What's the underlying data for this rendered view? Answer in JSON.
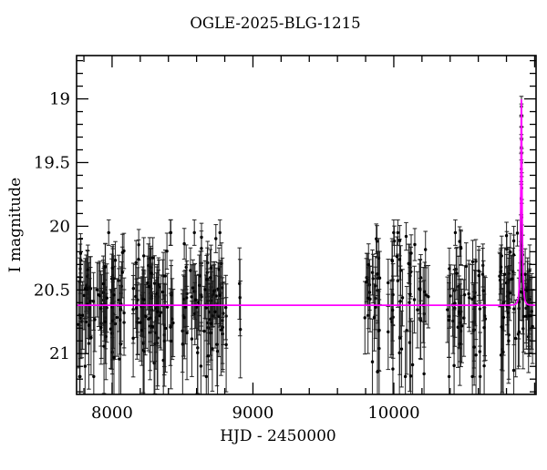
{
  "title": "OGLE-2025-BLG-1215",
  "axes": {
    "xlabel": "HJD - 2450000",
    "ylabel": "I magnitude",
    "x_range": [
      7748,
      11010
    ],
    "y_range_mag": [
      21.32,
      18.66
    ],
    "x_major_ticks": [
      8000,
      9000,
      10000,
      11000
    ],
    "x_labeled_ticks": [
      8000,
      9000,
      10000
    ],
    "x_tick_labels": [
      "8000",
      "9000",
      "10000"
    ],
    "x_minor_step": 200,
    "y_major_ticks": [
      19,
      19.5,
      20,
      20.5,
      21
    ],
    "y_tick_labels": [
      "19",
      "19.5",
      "20",
      "20.5",
      "21"
    ],
    "y_minor_step": 0.1
  },
  "chart_data": {
    "type": "scatter",
    "title": "OGLE-2025-BLG-1215",
    "xlabel": "HJD - 2450000",
    "ylabel": "I magnitude",
    "y_axis_inverted": true,
    "grid": false,
    "legend": "none",
    "marker_color": "#000000",
    "errorbar_color": "#1a1a1a",
    "model_color": "#ff00ff",
    "baseline_mag": 20.62,
    "model": {
      "name": "paczynski-microlensing-fit",
      "t0": 10906,
      "tE": 11,
      "u0": 0.23,
      "baseline_mag": 20.62,
      "peak_mag": 19.0
    },
    "seasons": [
      {
        "hjd_min": 7760,
        "hjd_max": 8085,
        "n": 85,
        "clumps": 6
      },
      {
        "hjd_min": 8150,
        "hjd_max": 8440,
        "n": 78,
        "clumps": 6
      },
      {
        "hjd_min": 8500,
        "hjd_max": 8810,
        "n": 80,
        "clumps": 6
      },
      {
        "hjd_min": 9795,
        "hjd_max": 9900,
        "n": 28,
        "clumps": 2
      },
      {
        "hjd_min": 9960,
        "hjd_max": 10245,
        "n": 52,
        "clumps": 5
      },
      {
        "hjd_min": 10380,
        "hjd_max": 10650,
        "n": 56,
        "clumps": 5
      },
      {
        "hjd_min": 10745,
        "hjd_max": 10985,
        "n": 62,
        "clumps": 5
      }
    ],
    "scatter_stats": {
      "mag_mean": 20.6,
      "mag_sigma": 0.26,
      "mag_min": 20.05,
      "mag_max": 21.18,
      "err_base": 0.1,
      "err_slope": 0.3
    },
    "seed": 7,
    "isolated_points": [
      [
        8905,
        20.45,
        0.28
      ],
      [
        8908,
        20.56,
        0.3
      ],
      [
        8911,
        20.81,
        0.38
      ]
    ],
    "peak_points": [
      [
        10903.5,
        20.28,
        0.16
      ],
      [
        10904.2,
        20.05,
        0.14
      ],
      [
        10904.8,
        19.78,
        0.13
      ],
      [
        10905.2,
        19.55,
        0.12
      ],
      [
        10905.6,
        19.38,
        0.1
      ],
      [
        10905.9,
        19.22,
        0.09
      ],
      [
        10906.1,
        19.06,
        0.08
      ],
      [
        10906.3,
        19.13,
        0.09
      ],
      [
        10906.7,
        19.32,
        0.1
      ],
      [
        10907.3,
        19.5,
        0.11
      ],
      [
        10907.9,
        19.7,
        0.12
      ],
      [
        10908.6,
        19.93,
        0.14
      ],
      [
        10909.4,
        20.15,
        0.16
      ],
      [
        10910.5,
        20.38,
        0.18
      ],
      [
        10912.0,
        20.52,
        0.22
      ]
    ]
  }
}
